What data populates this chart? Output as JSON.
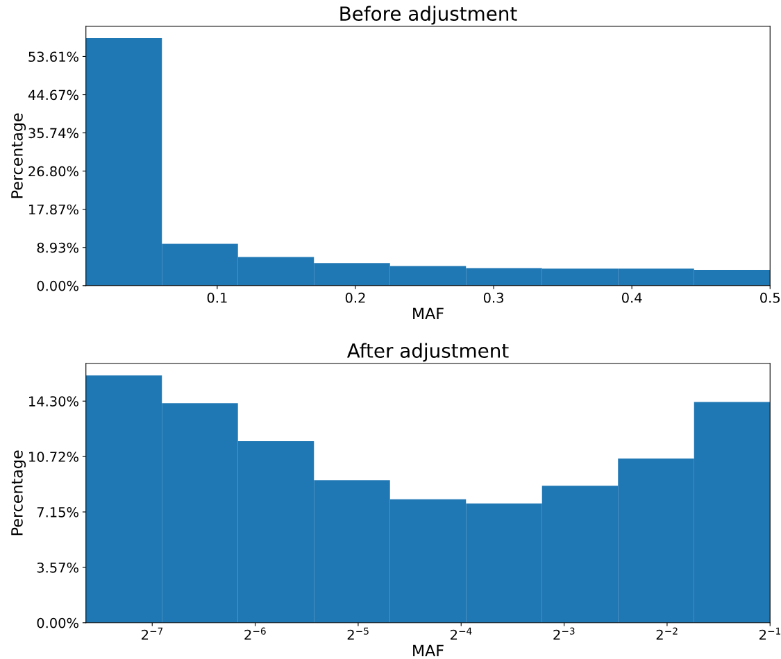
{
  "chart_data": [
    {
      "type": "histogram",
      "title": "Before adjustment",
      "xlabel": "MAF",
      "ylabel": "Percentage",
      "color": "#1f77b4",
      "bins": [
        0.005,
        0.06,
        0.115,
        0.17,
        0.225,
        0.28,
        0.335,
        0.39,
        0.445,
        0.5
      ],
      "values": [
        57.9,
        9.8,
        6.7,
        5.3,
        4.6,
        4.1,
        4.0,
        4.0,
        3.7
      ],
      "xlim": [
        0.005,
        0.5
      ],
      "xticks": [
        0.1,
        0.2,
        0.3,
        0.4,
        0.5
      ],
      "ylim": [
        0,
        60.66
      ],
      "yticks": [
        {
          "value": 0,
          "label": "0.00%"
        },
        {
          "value": 8.93,
          "label": "8.93%"
        },
        {
          "value": 17.87,
          "label": "17.87%"
        },
        {
          "value": 26.8,
          "label": "26.80%"
        },
        {
          "value": 35.74,
          "label": "35.74%"
        },
        {
          "value": 44.67,
          "label": "44.67%"
        },
        {
          "value": 53.61,
          "label": "53.61%"
        }
      ],
      "grid": false,
      "legend": false
    },
    {
      "type": "histogram",
      "title": "After adjustment",
      "xlabel": "MAF",
      "ylabel": "Percentage",
      "color": "#1f77b4",
      "log": "x",
      "bins": [
        0.005,
        0.00834,
        0.01391,
        0.02321,
        0.03871,
        0.06458,
        0.10772,
        0.17969,
        0.29974,
        0.5
      ],
      "values": [
        15.96,
        14.17,
        11.71,
        9.2,
        7.97,
        7.7,
        8.84,
        10.6,
        14.24
      ],
      "xlim": [
        0.005,
        0.5
      ],
      "xticks": [
        {
          "value": 0.0078125,
          "label": "2$^{−7}$"
        },
        {
          "value": 0.015625,
          "label": "2$^{−6}$"
        },
        {
          "value": 0.03125,
          "label": "2$^{−5}$"
        },
        {
          "value": 0.0625,
          "label": "2$^{−4}$"
        },
        {
          "value": 0.125,
          "label": "2$^{−3}$"
        },
        {
          "value": 0.25,
          "label": "2$^{−2}$"
        },
        {
          "value": 0.5,
          "label": "2$^{−1}$"
        }
      ],
      "ylim": [
        0,
        16.73
      ],
      "yticks": [
        {
          "value": 0,
          "label": "0.00%"
        },
        {
          "value": 3.57,
          "label": "3.57%"
        },
        {
          "value": 7.15,
          "label": "7.15%"
        },
        {
          "value": 10.72,
          "label": "10.72%"
        },
        {
          "value": 14.3,
          "label": "14.30%"
        }
      ],
      "grid": false,
      "legend": false
    }
  ]
}
